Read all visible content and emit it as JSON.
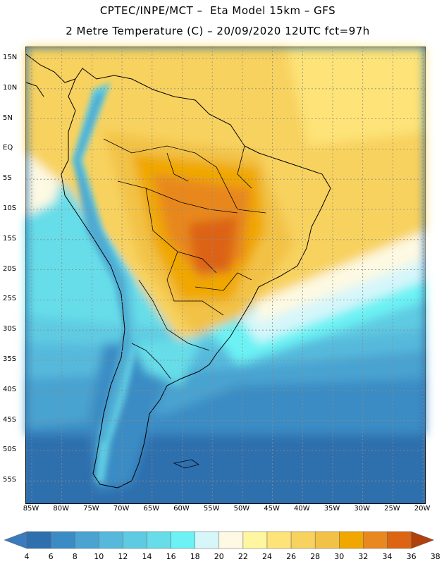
{
  "header": {
    "line1": "CPTEC/INPE/MCT –  Eta Model 15km – GFS",
    "line2": "2 Metre Temperature (C) – 20/09/2020 12UTC fct=97h"
  },
  "map": {
    "lat_labels": [
      "15N",
      "10N",
      "5N",
      "EQ",
      "5S",
      "10S",
      "15S",
      "20S",
      "25S",
      "30S",
      "35S",
      "40S",
      "45S",
      "50S",
      "55S"
    ],
    "lon_labels": [
      "85W",
      "80W",
      "75W",
      "70W",
      "65W",
      "60W",
      "55W",
      "50W",
      "45W",
      "40W",
      "35W",
      "30W",
      "25W",
      "20W"
    ]
  },
  "colorbar": {
    "levels": [
      "4",
      "6",
      "8",
      "10",
      "12",
      "14",
      "16",
      "18",
      "20",
      "22",
      "24",
      "26",
      "28",
      "30",
      "32",
      "34",
      "36",
      "38"
    ],
    "colors": [
      "#2e6fae",
      "#3b8cc4",
      "#4aa3d0",
      "#56b9dc",
      "#5fcbe2",
      "#66dde9",
      "#6cf2f4",
      "#d6f6fa",
      "#fdf9e2",
      "#fef6a0",
      "#fde378",
      "#f8d25e",
      "#f2c247",
      "#f0a800",
      "#e8881f",
      "#dc6412",
      "#c24a08",
      "#b23a04"
    ],
    "under_color": "#3a7bbd",
    "over_color": "#b0400c"
  }
}
